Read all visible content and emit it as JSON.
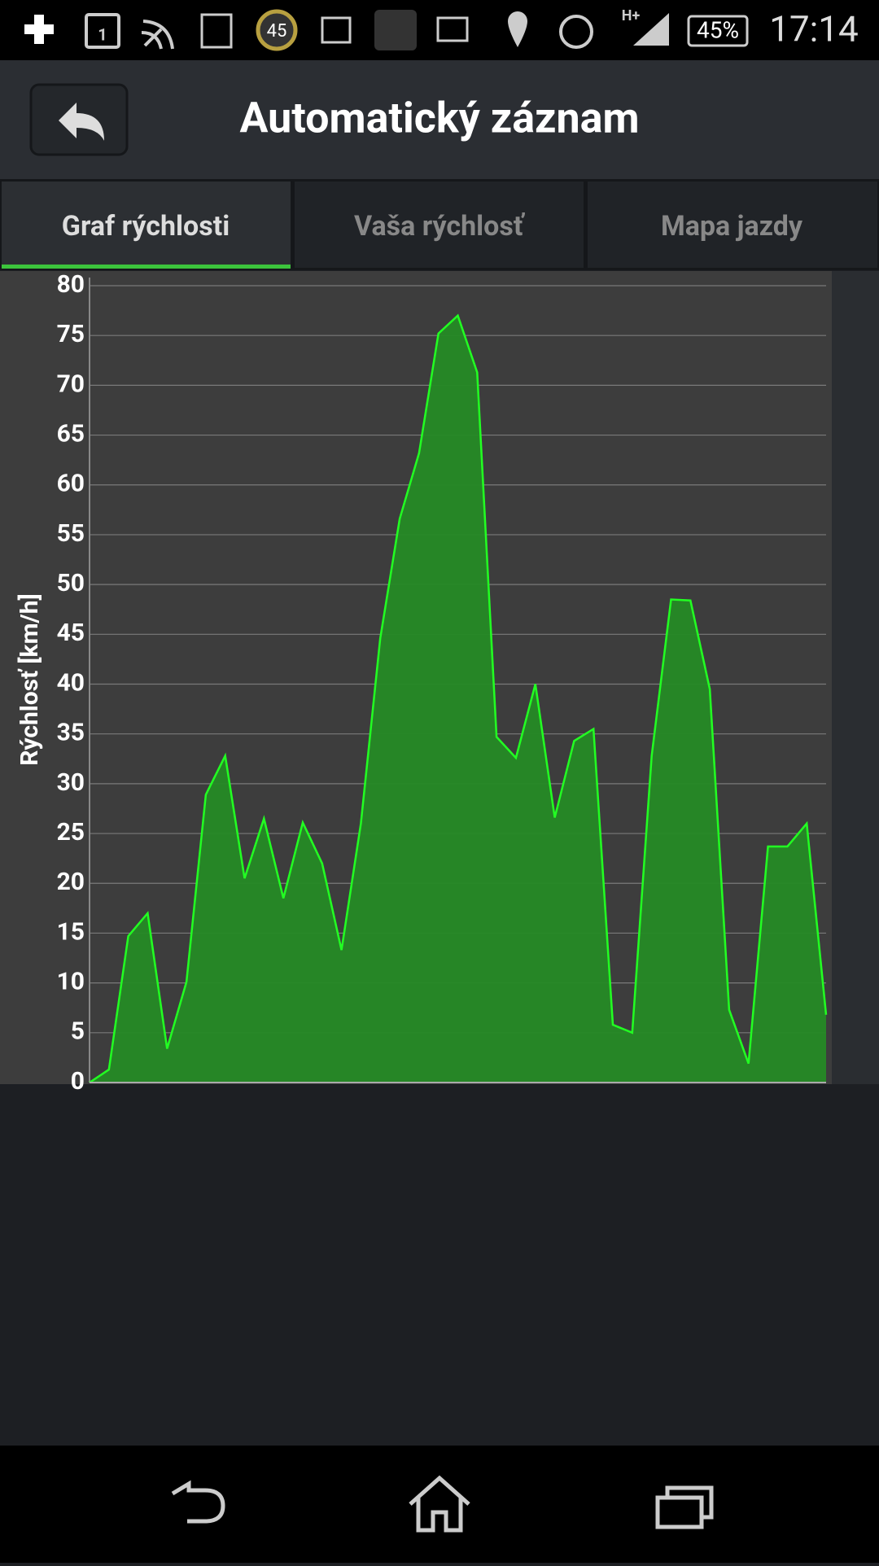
{
  "status_bar": {
    "calendar_day": "1",
    "badge": "45",
    "network": "H+",
    "battery": "45%",
    "time": "17:14"
  },
  "header": {
    "title": "Automatický záznam"
  },
  "tabs": [
    "Graf rýchlosti",
    "Vaša rýchlosť",
    "Mapa jazdy"
  ],
  "chart_data": {
    "type": "area",
    "y_label": "Rýchlosť [km/h]",
    "color": "#258a25",
    "line_color": "#22ff22",
    "values": [
      0,
      1.3,
      14.7,
      17,
      3.4,
      10.1,
      28.9,
      32.8,
      20.5,
      26.5,
      18.5,
      26.1,
      22,
      13.3,
      26,
      44.6,
      56.6,
      63.2,
      75.2,
      77,
      71.3,
      34.7,
      32.6,
      40,
      26.6,
      34.3,
      35.5,
      5.8,
      5,
      32.8,
      48.5,
      48.4,
      39.5,
      7.3,
      1.9,
      23.7,
      23.7,
      26,
      6.8
    ],
    "ylim": [
      0,
      80
    ],
    "yticks": [
      0,
      5,
      10,
      15,
      20,
      25,
      30,
      35,
      40,
      45,
      50,
      55,
      60,
      65,
      70,
      75,
      80
    ],
    "grid": true
  }
}
